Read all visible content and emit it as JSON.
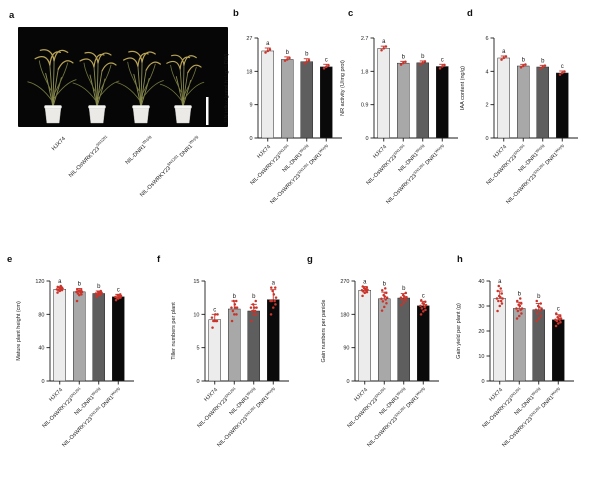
{
  "panel_letters": {
    "a": "a",
    "b": "b",
    "c": "c",
    "d": "d",
    "e": "e",
    "f": "f",
    "g": "g",
    "h": "h"
  },
  "colors": {
    "bar_fills": [
      "#ececec",
      "#a8a8a8",
      "#5e5e5e",
      "#0a0a0a"
    ],
    "bar_stroke": "#2a2a2a",
    "error_red": "#c63228",
    "point_red": "#cb342b",
    "axis": "#1a1a1a",
    "sig_letter": "#3f3f3f",
    "photo_bg": "#060606",
    "scale_bar": "#ffffff",
    "pot_fill": "#eceae6",
    "stem_green": "#8a8c4f",
    "leaf_green": "#73773f",
    "panicle_tan": "#b9a456"
  },
  "categories": [
    [
      {
        "t": "HJX74"
      }
    ],
    [
      {
        "t": "NIL-OsWRKY23"
      },
      {
        "t": "SN1291",
        "sup": true
      }
    ],
    [
      {
        "t": "NIL-DNR1"
      },
      {
        "t": "Wuyig",
        "sup": true
      }
    ],
    [
      {
        "t": "NIL-OsWRKY23"
      },
      {
        "t": "SN1291",
        "sup": true
      },
      {
        "t": " DNR1"
      },
      {
        "t": "Wuyig",
        "sup": true
      }
    ]
  ],
  "panel_a": {
    "label": "a",
    "content": "Four rice plants in white pots on black background",
    "scale_bar": "scale-bar"
  },
  "chart_data": [
    {
      "panel": "b",
      "type": "bar",
      "ylabel": "¹⁵N influx (μmol h⁻¹ g⁻¹ DW)",
      "ymax": 27,
      "yticks": [
        0,
        9,
        18,
        27
      ],
      "ytick_labels": [
        "0",
        "9",
        "18",
        "27"
      ],
      "means": [
        23.5,
        21.2,
        20.6,
        19.2
      ],
      "errors": [
        0.8,
        0.7,
        0.8,
        0.7
      ],
      "letters": [
        "a",
        "b",
        "b",
        "c"
      ],
      "points": [
        [
          23.1,
          23.5,
          23.9
        ],
        [
          20.9,
          21.2,
          21.6
        ],
        [
          20.1,
          20.6,
          21.0
        ],
        [
          18.8,
          19.2,
          19.6
        ]
      ]
    },
    {
      "panel": "c",
      "type": "bar",
      "ylabel": "NR activity (U/mg prot)",
      "ymax": 2.7,
      "yticks": [
        0,
        0.9,
        1.8,
        2.7
      ],
      "ytick_labels": [
        "0",
        "0.9",
        "1.8",
        "2.7"
      ],
      "means": [
        2.42,
        2.02,
        2.03,
        1.93
      ],
      "errors": [
        0.06,
        0.05,
        0.05,
        0.06
      ],
      "letters": [
        "a",
        "b",
        "b",
        "c"
      ],
      "points": [
        [
          2.37,
          2.42,
          2.47
        ],
        [
          1.98,
          2.02,
          2.06
        ],
        [
          1.99,
          2.03,
          2.07
        ],
        [
          1.88,
          1.93,
          1.97
        ]
      ]
    },
    {
      "panel": "d",
      "type": "bar",
      "ylabel": "IAA content (ng/g)",
      "ymax": 6,
      "yticks": [
        0,
        2,
        4,
        6
      ],
      "ytick_labels": [
        "0",
        "2",
        "4",
        "6"
      ],
      "means": [
        4.8,
        4.32,
        4.26,
        3.9
      ],
      "errors": [
        0.12,
        0.1,
        0.1,
        0.12
      ],
      "letters": [
        "a",
        "b",
        "b",
        "c"
      ],
      "points": [
        [
          4.7,
          4.8,
          4.9
        ],
        [
          4.24,
          4.32,
          4.41
        ],
        [
          4.17,
          4.26,
          4.34
        ],
        [
          3.8,
          3.9,
          3.99
        ]
      ]
    },
    {
      "panel": "e",
      "type": "bar",
      "ylabel": "Mature plant height (cm)",
      "ymax": 120,
      "yticks": [
        0,
        40,
        80,
        120
      ],
      "ytick_labels": [
        "0",
        "40",
        "80",
        "120"
      ],
      "means": [
        110,
        107,
        105,
        101
      ],
      "errors": [
        3,
        4,
        3,
        3
      ],
      "letters": [
        "a",
        "b",
        "b",
        "c"
      ],
      "points": [
        [
          106,
          108,
          109,
          109,
          110,
          110,
          111,
          111,
          112,
          112,
          113,
          114
        ],
        [
          96,
          103,
          104,
          105,
          106,
          107,
          107,
          108,
          108,
          109,
          110
        ],
        [
          101,
          103,
          104,
          104,
          105,
          105,
          106,
          106,
          107,
          108
        ],
        [
          97,
          99,
          100,
          100,
          101,
          101,
          102,
          102,
          103,
          104
        ]
      ]
    },
    {
      "panel": "f",
      "type": "bar",
      "ylabel": "Tiller numbers per plant",
      "ymax": 15,
      "yticks": [
        0,
        5,
        10,
        15
      ],
      "ytick_labels": [
        "0",
        "5",
        "10",
        "15"
      ],
      "means": [
        9.2,
        10.8,
        10.5,
        12.2
      ],
      "errors": [
        0.8,
        1.2,
        1.0,
        1.5
      ],
      "letters": [
        "c",
        "b",
        "b",
        "a"
      ],
      "points": [
        [
          8,
          9,
          9,
          9,
          9,
          9.5,
          10,
          10
        ],
        [
          9,
          10,
          10,
          10.5,
          11,
          11,
          11,
          11.5,
          12,
          12
        ],
        [
          9,
          10,
          10,
          10.5,
          10.5,
          11,
          11,
          11,
          11.5,
          12
        ],
        [
          10,
          11,
          11.5,
          12,
          12,
          12,
          12.5,
          13,
          13.5,
          14,
          14
        ]
      ]
    },
    {
      "panel": "g",
      "type": "bar",
      "ylabel": "Gain numbers per panicle",
      "ymax": 270,
      "yticks": [
        0,
        90,
        180,
        270
      ],
      "ytick_labels": [
        "0",
        "90",
        "180",
        "270"
      ],
      "means": [
        245,
        222,
        224,
        203
      ],
      "errors": [
        10,
        18,
        12,
        12
      ],
      "letters": [
        "a",
        "b",
        "b",
        "c"
      ],
      "points": [
        [
          230,
          238,
          240,
          242,
          244,
          245,
          246,
          248,
          250,
          252,
          255
        ],
        [
          190,
          200,
          210,
          215,
          220,
          222,
          225,
          228,
          232,
          238,
          245,
          250
        ],
        [
          205,
          212,
          218,
          220,
          222,
          225,
          226,
          228,
          232,
          238
        ],
        [
          180,
          188,
          192,
          196,
          200,
          203,
          205,
          208,
          210,
          214,
          218
        ]
      ]
    },
    {
      "panel": "h",
      "type": "bar",
      "ylabel": "Gain yield per plant (g)",
      "ymax": 40,
      "yticks": [
        0,
        10,
        20,
        30,
        40
      ],
      "ytick_labels": [
        "0",
        "10",
        "20",
        "30",
        "40"
      ],
      "means": [
        33,
        29,
        28.5,
        24.5
      ],
      "errors": [
        3,
        2.5,
        2.5,
        2
      ],
      "letters": [
        "a",
        "b",
        "b",
        "c"
      ],
      "points": [
        [
          28,
          30,
          31,
          32,
          32,
          33,
          33,
          33.5,
          34,
          35,
          36,
          37,
          38
        ],
        [
          25,
          26,
          27,
          28,
          28.5,
          29,
          29,
          30,
          30.5,
          31,
          32,
          33
        ],
        [
          24,
          25,
          26,
          27,
          28,
          28.5,
          29,
          29.5,
          30,
          31,
          32
        ],
        [
          22,
          23,
          23.5,
          24,
          24.5,
          24.5,
          25,
          25,
          25.5,
          26,
          27
        ]
      ]
    }
  ]
}
